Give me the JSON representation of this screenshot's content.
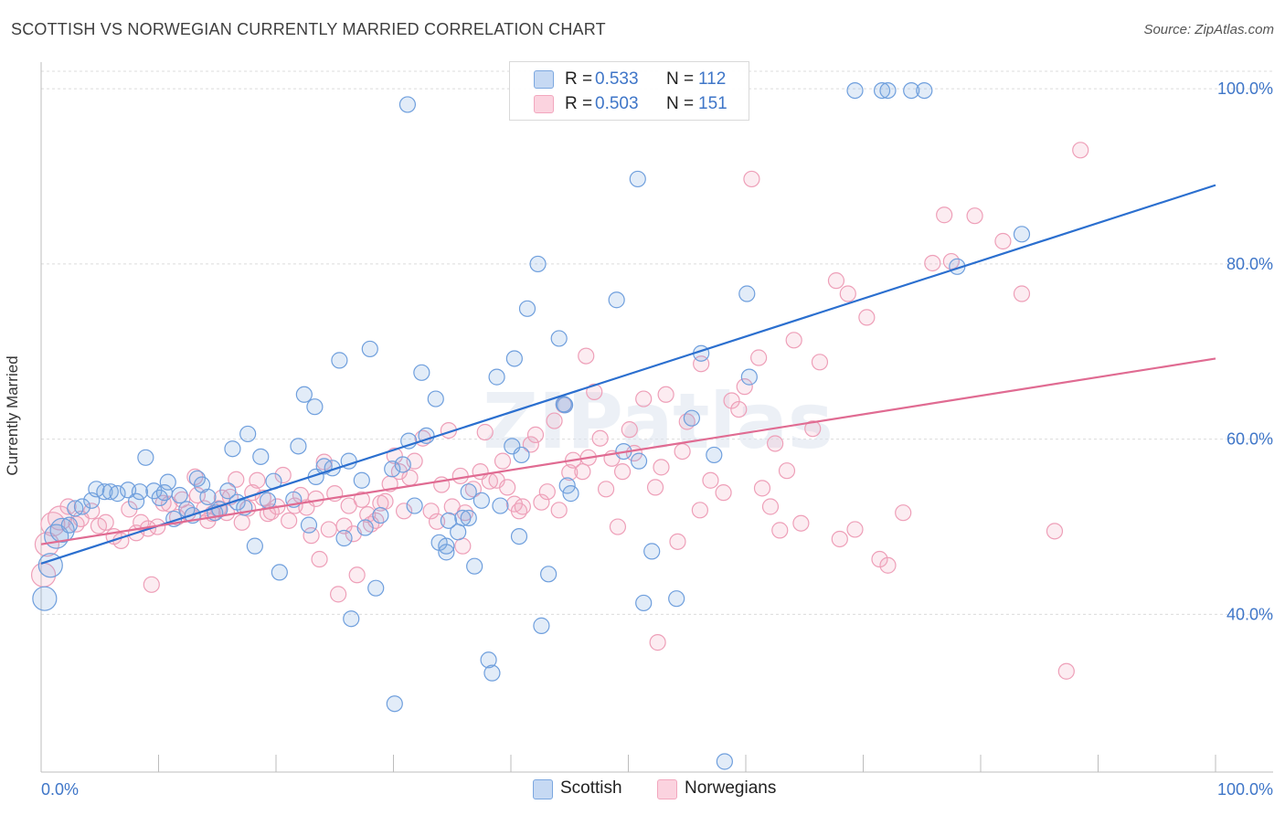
{
  "header": {
    "title": "SCOTTISH VS NORWEGIAN CURRENTLY MARRIED CORRELATION CHART",
    "source": "Source: ZipAtlas.com"
  },
  "watermark": "ZIPatlas",
  "correlation_box": {
    "rows": [
      {
        "r_label": "R =",
        "r_value": "0.533",
        "n_label": "N =",
        "n_value": "112",
        "color": "#7ba7e0"
      },
      {
        "r_label": "R =",
        "r_value": "0.503",
        "n_label": "N =",
        "n_value": "151",
        "color": "#f2a7be"
      }
    ]
  },
  "legend": [
    {
      "label": "Scottish",
      "color": "#7ba7e0"
    },
    {
      "label": "Norwegians",
      "color": "#f2a7be"
    }
  ],
  "chart_data": {
    "type": "scatter",
    "title": "SCOTTISH VS NORWEGIAN CURRENTLY MARRIED CORRELATION CHART",
    "xlabel": "",
    "ylabel": "Currently Married",
    "xlim": [
      0,
      100
    ],
    "ylim": [
      22,
      102
    ],
    "x_tick_labels": [
      "0.0%",
      "100.0%"
    ],
    "y_ticks": [
      40,
      60,
      80,
      100
    ],
    "y_tick_labels": [
      "40.0%",
      "60.0%",
      "80.0%",
      "100.0%"
    ],
    "grid": true,
    "legend_position": "bottom-center",
    "series": [
      {
        "name": "Scottish",
        "color": "#7ba7e0",
        "line_color": "#2b6fcf",
        "trend": {
          "x": [
            0,
            100
          ],
          "y": [
            45.8,
            89.0
          ]
        },
        "points": [
          [
            0.3,
            41.8
          ],
          [
            0.8,
            45.6
          ],
          [
            1.3,
            48.9
          ],
          [
            1.8,
            49.6
          ],
          [
            2.4,
            50.2
          ],
          [
            2.9,
            52.1
          ],
          [
            3.5,
            52.3
          ],
          [
            4.3,
            53.0
          ],
          [
            4.7,
            54.3
          ],
          [
            5.4,
            54.0
          ],
          [
            5.9,
            54.0
          ],
          [
            6.5,
            53.8
          ],
          [
            7.4,
            54.2
          ],
          [
            8.1,
            52.9
          ],
          [
            8.4,
            54.0
          ],
          [
            8.9,
            57.9
          ],
          [
            9.6,
            54.1
          ],
          [
            10.1,
            53.3
          ],
          [
            10.5,
            53.9
          ],
          [
            10.8,
            55.1
          ],
          [
            11.3,
            50.9
          ],
          [
            11.8,
            53.6
          ],
          [
            12.4,
            52.0
          ],
          [
            12.9,
            51.3
          ],
          [
            13.3,
            55.5
          ],
          [
            13.7,
            54.8
          ],
          [
            14.2,
            53.4
          ],
          [
            14.8,
            51.6
          ],
          [
            15.2,
            52.0
          ],
          [
            15.9,
            54.1
          ],
          [
            16.3,
            58.9
          ],
          [
            16.7,
            52.8
          ],
          [
            17.3,
            52.2
          ],
          [
            17.6,
            60.6
          ],
          [
            18.2,
            47.8
          ],
          [
            18.7,
            58.0
          ],
          [
            19.3,
            53.0
          ],
          [
            19.8,
            55.2
          ],
          [
            20.3,
            44.8
          ],
          [
            21.5,
            53.1
          ],
          [
            21.9,
            59.2
          ],
          [
            22.4,
            65.1
          ],
          [
            22.8,
            50.2
          ],
          [
            23.4,
            55.7
          ],
          [
            24.1,
            56.9
          ],
          [
            24.8,
            56.7
          ],
          [
            25.4,
            69.0
          ],
          [
            25.8,
            48.7
          ],
          [
            26.2,
            57.5
          ],
          [
            27.3,
            55.3
          ],
          [
            27.6,
            49.9
          ],
          [
            28.0,
            70.3
          ],
          [
            28.5,
            43.0
          ],
          [
            28.9,
            51.3
          ],
          [
            29.9,
            56.6
          ],
          [
            30.8,
            57.1
          ],
          [
            31.3,
            59.8
          ],
          [
            31.8,
            52.4
          ],
          [
            32.4,
            67.6
          ],
          [
            32.8,
            60.4
          ],
          [
            33.6,
            64.6
          ],
          [
            33.9,
            48.2
          ],
          [
            34.5,
            47.1
          ],
          [
            34.7,
            50.7
          ],
          [
            35.5,
            49.4
          ],
          [
            35.9,
            51.0
          ],
          [
            36.4,
            54.0
          ],
          [
            36.9,
            45.5
          ],
          [
            37.5,
            53.0
          ],
          [
            38.1,
            34.8
          ],
          [
            38.4,
            33.3
          ],
          [
            38.8,
            67.1
          ],
          [
            39.1,
            52.4
          ],
          [
            40.1,
            59.2
          ],
          [
            40.3,
            69.2
          ],
          [
            40.7,
            48.9
          ],
          [
            41.4,
            74.9
          ],
          [
            42.3,
            80.0
          ],
          [
            42.6,
            38.7
          ],
          [
            43.2,
            44.6
          ],
          [
            44.1,
            71.5
          ],
          [
            44.6,
            63.9
          ],
          [
            44.8,
            54.7
          ],
          [
            45.1,
            53.8
          ],
          [
            49.0,
            75.9
          ],
          [
            49.6,
            58.6
          ],
          [
            50.8,
            89.7
          ],
          [
            50.9,
            57.5
          ],
          [
            51.3,
            41.3
          ],
          [
            52.0,
            47.2
          ],
          [
            54.1,
            41.8
          ],
          [
            55.4,
            62.4
          ],
          [
            56.2,
            69.8
          ],
          [
            57.3,
            58.2
          ],
          [
            58.2,
            23.2
          ],
          [
            60.1,
            76.6
          ],
          [
            60.3,
            67.1
          ],
          [
            69.3,
            99.8
          ],
          [
            71.6,
            99.8
          ],
          [
            72.1,
            99.8
          ],
          [
            74.1,
            99.8
          ],
          [
            75.2,
            99.8
          ],
          [
            78.0,
            79.7
          ],
          [
            83.5,
            83.4
          ],
          [
            31.2,
            98.2
          ],
          [
            30.1,
            29.8
          ],
          [
            34.5,
            47.8
          ],
          [
            36.4,
            51.0
          ],
          [
            23.3,
            63.7
          ],
          [
            26.4,
            39.5
          ],
          [
            40.9,
            58.2
          ],
          [
            44.5,
            64.0
          ]
        ]
      },
      {
        "name": "Norwegians",
        "color": "#f2a7be",
        "line_color": "#e06b92",
        "trend": {
          "x": [
            0,
            100
          ],
          "y": [
            48.0,
            69.2
          ]
        },
        "points": [
          [
            0.2,
            44.5
          ],
          [
            0.5,
            48.0
          ],
          [
            1.0,
            50.3
          ],
          [
            1.6,
            51.0
          ],
          [
            2.3,
            52.3
          ],
          [
            3.0,
            50.3
          ],
          [
            3.4,
            50.9
          ],
          [
            4.3,
            51.8
          ],
          [
            4.9,
            50.1
          ],
          [
            5.5,
            50.5
          ],
          [
            6.2,
            48.9
          ],
          [
            6.8,
            48.4
          ],
          [
            7.5,
            52.0
          ],
          [
            8.1,
            49.3
          ],
          [
            8.5,
            50.5
          ],
          [
            9.1,
            49.8
          ],
          [
            9.4,
            43.4
          ],
          [
            9.9,
            50.0
          ],
          [
            10.4,
            52.7
          ],
          [
            10.9,
            52.6
          ],
          [
            11.6,
            51.1
          ],
          [
            12.0,
            53.1
          ],
          [
            12.5,
            51.6
          ],
          [
            13.1,
            55.7
          ],
          [
            13.3,
            53.6
          ],
          [
            13.9,
            52.1
          ],
          [
            14.2,
            50.7
          ],
          [
            14.6,
            51.5
          ],
          [
            15.1,
            52.1
          ],
          [
            15.4,
            53.3
          ],
          [
            15.8,
            51.6
          ],
          [
            16.1,
            53.4
          ],
          [
            16.6,
            55.4
          ],
          [
            17.1,
            50.5
          ],
          [
            17.6,
            52.1
          ],
          [
            18.0,
            53.9
          ],
          [
            18.4,
            55.3
          ],
          [
            18.9,
            53.3
          ],
          [
            19.3,
            51.5
          ],
          [
            19.6,
            51.7
          ],
          [
            20.1,
            52.3
          ],
          [
            20.6,
            55.9
          ],
          [
            21.1,
            50.7
          ],
          [
            21.6,
            52.4
          ],
          [
            22.1,
            53.6
          ],
          [
            22.6,
            52.2
          ],
          [
            23.0,
            49.0
          ],
          [
            23.4,
            53.2
          ],
          [
            23.7,
            46.3
          ],
          [
            24.1,
            57.4
          ],
          [
            24.5,
            49.7
          ],
          [
            25.0,
            53.8
          ],
          [
            25.3,
            42.3
          ],
          [
            25.8,
            50.1
          ],
          [
            26.2,
            52.4
          ],
          [
            26.6,
            49.2
          ],
          [
            26.9,
            44.5
          ],
          [
            27.3,
            53.1
          ],
          [
            27.8,
            51.4
          ],
          [
            28.1,
            50.3
          ],
          [
            28.5,
            50.7
          ],
          [
            28.9,
            52.7
          ],
          [
            29.3,
            52.9
          ],
          [
            29.7,
            54.9
          ],
          [
            30.1,
            58.1
          ],
          [
            30.5,
            56.3
          ],
          [
            30.9,
            51.8
          ],
          [
            31.4,
            55.6
          ],
          [
            31.8,
            57.5
          ],
          [
            32.5,
            60.1
          ],
          [
            33.2,
            51.8
          ],
          [
            33.7,
            50.6
          ],
          [
            34.1,
            54.8
          ],
          [
            34.7,
            61.0
          ],
          [
            35.0,
            52.3
          ],
          [
            35.7,
            55.8
          ],
          [
            36.1,
            51.6
          ],
          [
            36.8,
            54.3
          ],
          [
            37.4,
            56.3
          ],
          [
            37.8,
            60.8
          ],
          [
            38.2,
            55.2
          ],
          [
            38.8,
            55.3
          ],
          [
            39.3,
            57.5
          ],
          [
            39.7,
            54.5
          ],
          [
            40.3,
            52.6
          ],
          [
            40.7,
            51.8
          ],
          [
            41.0,
            52.3
          ],
          [
            41.7,
            59.4
          ],
          [
            42.1,
            60.5
          ],
          [
            42.6,
            52.8
          ],
          [
            43.7,
            62.1
          ],
          [
            44.1,
            51.9
          ],
          [
            44.5,
            63.9
          ],
          [
            45.0,
            56.2
          ],
          [
            45.3,
            57.6
          ],
          [
            46.1,
            56.3
          ],
          [
            46.6,
            57.9
          ],
          [
            47.1,
            65.4
          ],
          [
            47.6,
            60.1
          ],
          [
            48.1,
            54.3
          ],
          [
            48.6,
            57.8
          ],
          [
            49.1,
            50.0
          ],
          [
            49.5,
            56.3
          ],
          [
            50.1,
            61.1
          ],
          [
            50.5,
            58.4
          ],
          [
            51.3,
            64.6
          ],
          [
            52.3,
            54.5
          ],
          [
            52.8,
            56.8
          ],
          [
            53.2,
            65.1
          ],
          [
            54.2,
            48.3
          ],
          [
            54.6,
            58.6
          ],
          [
            55.0,
            62.0
          ],
          [
            56.2,
            68.6
          ],
          [
            57.0,
            55.3
          ],
          [
            58.1,
            53.9
          ],
          [
            58.8,
            64.4
          ],
          [
            59.4,
            63.4
          ],
          [
            59.9,
            66.0
          ],
          [
            60.5,
            89.7
          ],
          [
            61.4,
            54.4
          ],
          [
            62.1,
            52.3
          ],
          [
            62.5,
            59.5
          ],
          [
            62.9,
            49.6
          ],
          [
            63.5,
            56.4
          ],
          [
            64.1,
            71.3
          ],
          [
            64.7,
            50.4
          ],
          [
            65.7,
            61.2
          ],
          [
            66.3,
            68.8
          ],
          [
            67.7,
            78.1
          ],
          [
            68.7,
            76.6
          ],
          [
            69.3,
            49.7
          ],
          [
            70.3,
            73.9
          ],
          [
            71.4,
            46.3
          ],
          [
            72.1,
            45.6
          ],
          [
            76.9,
            85.6
          ],
          [
            77.5,
            80.3
          ],
          [
            79.5,
            85.5
          ],
          [
            81.9,
            82.6
          ],
          [
            83.5,
            76.6
          ],
          [
            86.3,
            49.5
          ],
          [
            87.3,
            33.5
          ],
          [
            88.5,
            93.0
          ],
          [
            75.9,
            80.1
          ],
          [
            46.4,
            69.5
          ],
          [
            52.5,
            36.8
          ],
          [
            56.1,
            51.9
          ],
          [
            43.1,
            54.0
          ],
          [
            35.9,
            47.8
          ],
          [
            61.1,
            69.3
          ],
          [
            68.0,
            48.6
          ],
          [
            73.4,
            51.6
          ]
        ]
      }
    ]
  }
}
